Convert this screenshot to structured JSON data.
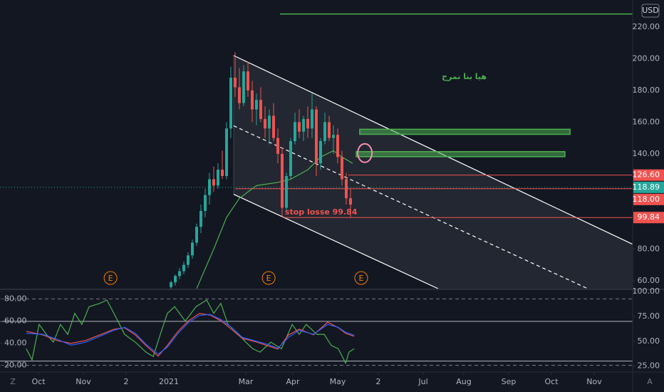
{
  "chart_data": {
    "type": "candlestick",
    "currency": "USD",
    "corner_left": "Z",
    "corner_right": "A",
    "xlim": [
      0,
      296
    ],
    "xticks": [
      {
        "value": 18,
        "label": "Oct"
      },
      {
        "value": 39,
        "label": "Nov"
      },
      {
        "value": 59,
        "label": "2"
      },
      {
        "value": 79,
        "label": "2021"
      },
      {
        "value": 115,
        "label": "Mar"
      },
      {
        "value": 137,
        "label": "Apr"
      },
      {
        "value": 158,
        "label": "May"
      },
      {
        "value": 177,
        "label": "2"
      },
      {
        "value": 198,
        "label": "Jul"
      },
      {
        "value": 217,
        "label": "Aug"
      },
      {
        "value": 238,
        "label": "Sep"
      },
      {
        "value": 258,
        "label": "Oct"
      },
      {
        "value": 278,
        "label": "Nov"
      }
    ],
    "ylim": [
      55,
      237
    ],
    "yticks": [
      {
        "value": 60,
        "label": "60.00"
      },
      {
        "value": 80,
        "label": "80.00"
      },
      {
        "value": 140,
        "label": "140.00"
      },
      {
        "value": 160,
        "label": "160.00"
      },
      {
        "value": 180,
        "label": "180.00"
      },
      {
        "value": 200,
        "label": "200.00"
      },
      {
        "value": 220,
        "label": "220.00"
      }
    ],
    "up_color": "#26a69a",
    "down_color": "#ef5350",
    "candles": {
      "x": [
        80,
        82,
        84,
        86,
        88,
        90,
        92,
        94,
        96,
        98,
        100,
        102,
        104,
        106,
        108,
        110,
        112,
        114,
        116,
        118,
        120,
        122,
        124,
        126,
        128,
        130,
        132,
        134,
        136,
        138,
        140,
        142,
        144,
        146,
        148,
        150,
        152,
        154,
        156,
        158,
        160,
        162,
        164
      ],
      "open": [
        56,
        59,
        63,
        66,
        70,
        76,
        84,
        94,
        104,
        114,
        124,
        120,
        130,
        126,
        156,
        188,
        182,
        172,
        192,
        180,
        168,
        174,
        162,
        156,
        164,
        150,
        140,
        106,
        126,
        148,
        160,
        154,
        162,
        156,
        168,
        134,
        148,
        160,
        150,
        152,
        138,
        124,
        112
      ],
      "high": [
        60,
        64,
        68,
        72,
        78,
        86,
        96,
        108,
        118,
        128,
        132,
        134,
        142,
        160,
        195,
        204,
        194,
        196,
        198,
        186,
        178,
        182,
        170,
        168,
        172,
        156,
        144,
        128,
        150,
        166,
        168,
        164,
        170,
        178,
        170,
        150,
        166,
        164,
        158,
        156,
        142,
        128,
        118
      ],
      "low": [
        55,
        57,
        61,
        64,
        68,
        74,
        82,
        90,
        100,
        108,
        116,
        118,
        124,
        124,
        150,
        176,
        168,
        170,
        176,
        160,
        158,
        160,
        150,
        146,
        148,
        134,
        100,
        104,
        124,
        146,
        150,
        148,
        150,
        150,
        126,
        130,
        146,
        148,
        140,
        134,
        120,
        108,
        99.84
      ],
      "close": [
        59,
        63,
        66,
        70,
        76,
        84,
        94,
        104,
        114,
        124,
        120,
        130,
        126,
        156,
        188,
        182,
        172,
        192,
        180,
        168,
        174,
        162,
        156,
        164,
        150,
        140,
        106,
        126,
        148,
        160,
        154,
        162,
        156,
        168,
        134,
        148,
        160,
        150,
        152,
        138,
        124,
        112,
        108
      ]
    },
    "ma": {
      "color": "#4caf50",
      "x": [
        92,
        100,
        106,
        112,
        120,
        130,
        136,
        144,
        150,
        156,
        160,
        165
      ],
      "values": [
        55,
        80,
        100,
        112,
        120,
        122,
        124,
        130,
        138,
        142,
        138,
        134
      ]
    },
    "channel": {
      "color": "#ffffff",
      "fill": "rgba(255,255,255,0.07)",
      "upper": {
        "x": [
          109.3,
          296
        ],
        "values": [
          202,
          83
        ]
      },
      "middle": {
        "x": [
          109.3,
          275
        ],
        "values": [
          157.7,
          55
        ],
        "dashed": true
      },
      "lower": {
        "x": [
          109.3,
          205
        ],
        "values": [
          114.5,
          55
        ]
      }
    },
    "target_line": {
      "color": "#4caf50",
      "x": [
        131,
        296
      ],
      "value": 228.2
    },
    "levels": [
      {
        "value": 126.6,
        "label": "126.60",
        "x0": 163,
        "color": "#ef5350",
        "style": "solid"
      },
      {
        "value": 118.89,
        "label": "118.89",
        "x0": 0,
        "color": "#26a69a",
        "style": "dotted"
      },
      {
        "value": 118,
        "label": "118.00",
        "x0": 110,
        "color": "#ef5350",
        "style": "solid"
      },
      {
        "value": 99.84,
        "label": "99.84",
        "x0": 132.7,
        "color": "#ef5350",
        "style": "solid"
      }
    ],
    "zones": [
      {
        "x": [
          168.3,
          266.7
        ],
        "values": [
          152.3,
          155.5
        ],
        "color": "#4caf50"
      },
      {
        "x": [
          166.7,
          264.3
        ],
        "values": [
          138.2,
          141.4
        ],
        "color": "#4caf50"
      }
    ],
    "circle": {
      "x": 170.7,
      "value": 140.5,
      "color": "#f48fb1"
    },
    "annotations": [
      {
        "text": "stop losse 99.84",
        "x": 133.3,
        "value": 103,
        "color": "#ef5350"
      },
      {
        "text": "هيا بنا نمرح",
        "x": 206.7,
        "value": 188.5,
        "color": "#4caf50"
      }
    ],
    "earnings": {
      "label": "E",
      "x": [
        51.7,
        125.7,
        169
      ],
      "color": "#f57c00"
    },
    "indicator": {
      "ylim": [
        14,
        88
      ],
      "yticks": [
        {
          "value": 20,
          "label": "20.00"
        },
        {
          "value": 40,
          "label": "40.00"
        },
        {
          "value": 60,
          "label": "60.00"
        },
        {
          "value": 80,
          "label": "80.00"
        }
      ],
      "y2lim": [
        19,
        101.5
      ],
      "y2ticks": [
        {
          "value": 25,
          "label": "25.00"
        },
        {
          "value": 50,
          "label": "50.00"
        },
        {
          "value": 75,
          "label": "75.00"
        },
        {
          "value": 100,
          "label": "100.00"
        }
      ],
      "hlines": [
        80,
        20
      ],
      "h2lines": [
        70,
        30
      ],
      "series": [
        {
          "color": "#4caf50",
          "axis": "y",
          "x": [
            12.3,
            15,
            18.3,
            21.7,
            25,
            28.3,
            31.7,
            35,
            38.3,
            41.7,
            46.7,
            50,
            53.3,
            58.3,
            63.3,
            68.3,
            71.7,
            75,
            78.3,
            81.7,
            86.7,
            91.7,
            96.7,
            100,
            103.3,
            106.7,
            111.7,
            115,
            118.3,
            121.7,
            126.7,
            131.7,
            136.7,
            140,
            143.3,
            148.3,
            151.7,
            155,
            158.3,
            161.7,
            163.3,
            165.7
          ],
          "values": [
            35,
            25,
            57,
            48,
            41,
            57,
            48,
            67,
            57,
            73,
            76,
            79,
            67,
            48,
            41,
            32,
            28,
            48,
            67,
            73,
            60,
            73,
            79,
            67,
            76,
            57,
            48,
            41,
            35,
            32,
            41,
            35,
            57,
            48,
            57,
            48,
            48,
            38,
            35,
            22,
            32,
            35
          ]
        },
        {
          "color": "#ef5350",
          "axis": "y2",
          "x": [
            12.3,
            20,
            26.7,
            33.3,
            40,
            46.7,
            53.3,
            58.3,
            63.3,
            68.3,
            74,
            78.3,
            83.3,
            88.3,
            93.3,
            98.3,
            103.3,
            108.3,
            113.3,
            120,
            125,
            130,
            135,
            140,
            146.7,
            153.3,
            158.3,
            161.7,
            165.7
          ],
          "values": [
            60,
            56.4,
            50.7,
            47.9,
            50.7,
            56.4,
            62.1,
            63.6,
            56.4,
            45.7,
            35,
            45.7,
            60,
            70.7,
            77.9,
            76.4,
            70.7,
            62.1,
            52.9,
            49.3,
            45.7,
            42.1,
            56.4,
            62.1,
            56.4,
            69.3,
            63.6,
            57.9,
            55
          ]
        },
        {
          "color": "#2962ff",
          "axis": "y2",
          "x": [
            12.3,
            20,
            26.7,
            33.3,
            40,
            46.7,
            53.3,
            58.3,
            63.3,
            68.3,
            74,
            78.3,
            83.3,
            88.3,
            93.3,
            98.3,
            103.3,
            108.3,
            113.3,
            120,
            125,
            130,
            135,
            140,
            146.7,
            153.3,
            158.3,
            161.7,
            165.7
          ],
          "values": [
            58,
            57,
            52,
            46,
            49,
            55,
            61,
            64,
            58,
            47,
            37,
            44,
            58,
            69,
            76,
            77,
            72,
            64,
            54,
            50,
            47,
            43,
            54,
            61,
            57,
            67,
            64,
            59,
            56
          ]
        }
      ]
    }
  }
}
